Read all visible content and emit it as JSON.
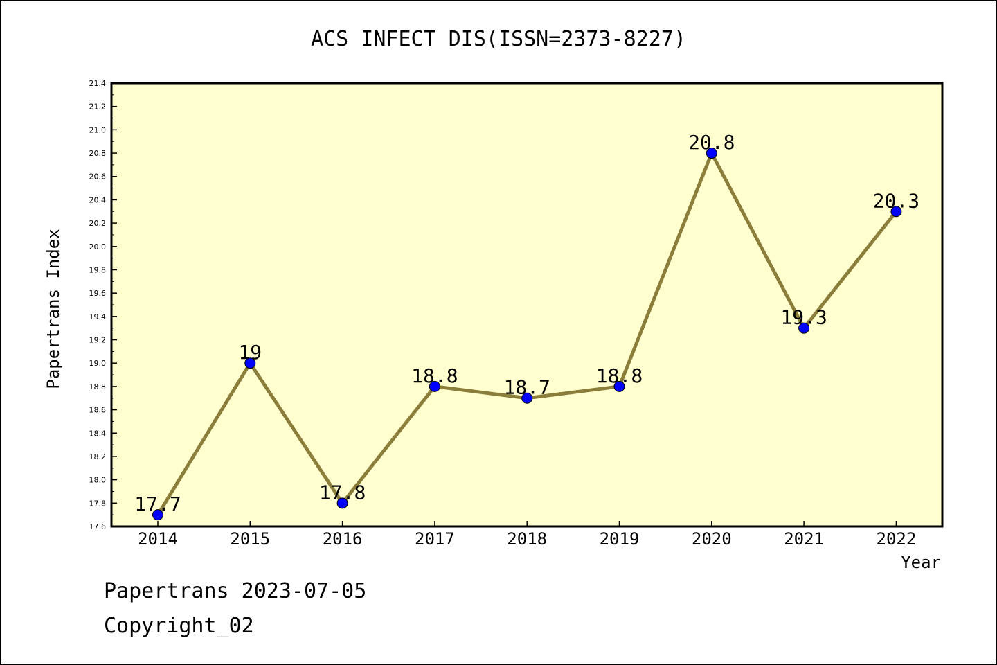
{
  "chart_data": {
    "type": "line",
    "title": "ACS INFECT DIS(ISSN=2373-8227)",
    "xlabel": "Year",
    "ylabel": "Papertrans Index",
    "categories": [
      "2014",
      "2015",
      "2016",
      "2017",
      "2018",
      "2019",
      "2020",
      "2021",
      "2022"
    ],
    "values": [
      17.7,
      19,
      17.8,
      18.8,
      18.7,
      18.8,
      20.8,
      19.3,
      20.3
    ],
    "value_labels": [
      "17.7",
      "19",
      "17.8",
      "18.8",
      "18.7",
      "18.8",
      "20.8",
      "19.3",
      "20.3"
    ],
    "ylim": [
      17.6,
      21.4
    ],
    "yticks": [
      "17.6",
      "17.8",
      "18.0",
      "18.2",
      "18.4",
      "18.6",
      "18.8",
      "19.0",
      "19.2",
      "19.4",
      "19.6",
      "19.8",
      "20.0",
      "20.2",
      "20.4",
      "20.6",
      "20.8",
      "21.0",
      "21.2",
      "21.4"
    ],
    "grid": false,
    "colors": {
      "plot_background": "#ffffd0",
      "line": "#8b7d3a",
      "marker": "#0000ff"
    }
  },
  "footer": {
    "line1": "Papertrans 2023-07-05",
    "line2": "Copyright_02"
  }
}
